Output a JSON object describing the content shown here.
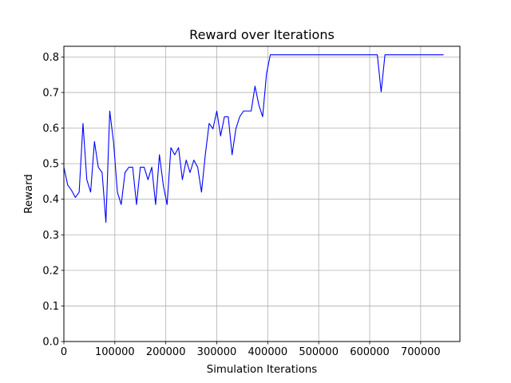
{
  "chart_data": {
    "type": "line",
    "title": "Reward over Iterations",
    "xlabel": "Simulation Iterations",
    "ylabel": "Reward",
    "xlim": [
      0,
      777000
    ],
    "ylim": [
      0,
      0.83
    ],
    "grid": true,
    "x_ticks": [
      0,
      100000,
      200000,
      300000,
      400000,
      500000,
      600000,
      700000
    ],
    "x_tick_labels": [
      "0",
      "100000",
      "200000",
      "300000",
      "400000",
      "500000",
      "600000",
      "700000"
    ],
    "y_ticks": [
      0.0,
      0.1,
      0.2,
      0.3,
      0.4,
      0.5,
      0.6,
      0.7,
      0.8
    ],
    "y_tick_labels": [
      "0.0",
      "0.1",
      "0.2",
      "0.3",
      "0.4",
      "0.5",
      "0.6",
      "0.7",
      "0.8"
    ],
    "series": [
      {
        "color": "#0000ff",
        "x": [
          0,
          7500,
          15000,
          22500,
          30000,
          37500,
          45000,
          52500,
          60000,
          67500,
          75000,
          82500,
          90000,
          97500,
          105000,
          112500,
          120000,
          127500,
          135000,
          142500,
          150000,
          157500,
          165000,
          172500,
          180000,
          187500,
          195000,
          202500,
          210000,
          217500,
          225000,
          232500,
          240000,
          247500,
          255000,
          262500,
          270000,
          277500,
          285000,
          292500,
          300000,
          307500,
          315000,
          322500,
          330000,
          337500,
          345000,
          352500,
          360000,
          367500,
          375000,
          382500,
          390000,
          397500,
          405000,
          412500,
          615000,
          622500,
          630000,
          637500,
          745000
        ],
        "y": [
          0.49,
          0.44,
          0.425,
          0.405,
          0.42,
          0.613,
          0.455,
          0.42,
          0.562,
          0.49,
          0.475,
          0.335,
          0.648,
          0.56,
          0.42,
          0.385,
          0.475,
          0.49,
          0.49,
          0.385,
          0.49,
          0.49,
          0.455,
          0.49,
          0.385,
          0.525,
          0.44,
          0.385,
          0.545,
          0.525,
          0.545,
          0.455,
          0.51,
          0.475,
          0.51,
          0.49,
          0.42,
          0.525,
          0.613,
          0.598,
          0.648,
          0.578,
          0.632,
          0.632,
          0.525,
          0.598,
          0.632,
          0.648,
          0.648,
          0.648,
          0.718,
          0.665,
          0.632,
          0.752,
          0.806,
          0.806,
          0.806,
          0.702,
          0.806,
          0.806,
          0.806
        ]
      }
    ]
  }
}
